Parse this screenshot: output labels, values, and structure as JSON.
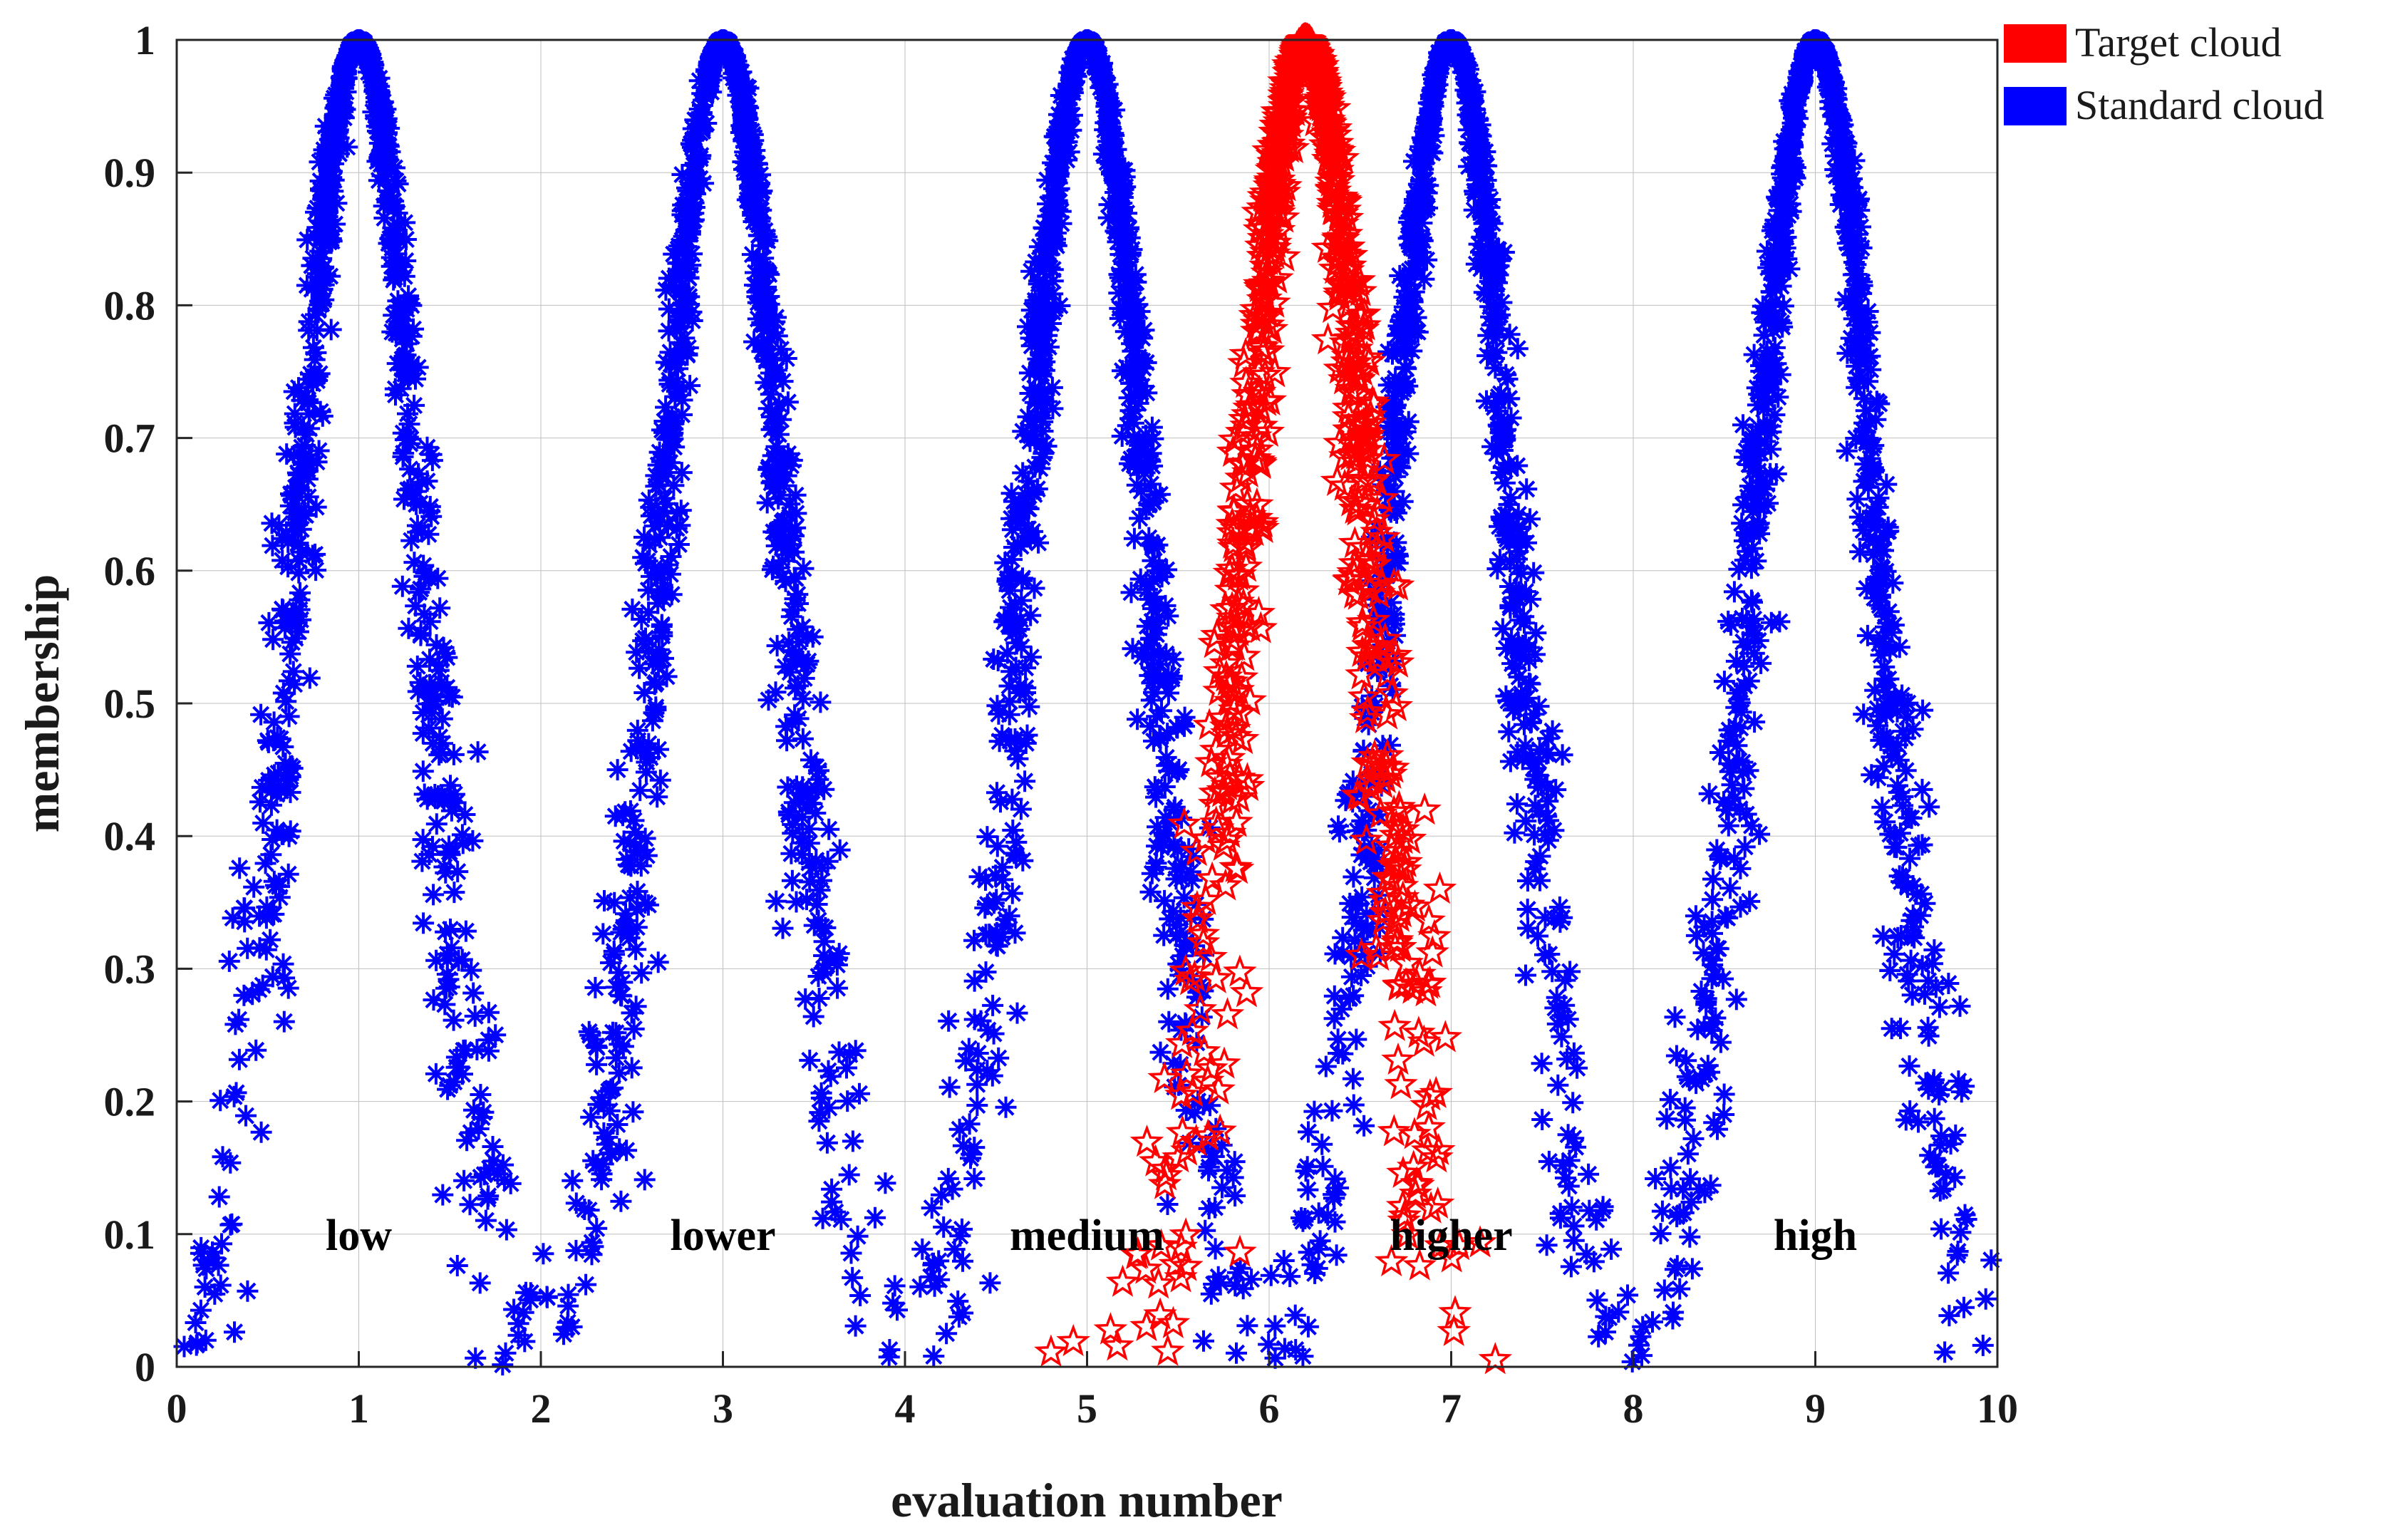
{
  "chart_data": {
    "type": "scatter",
    "title": "",
    "xlabel": "evaluation number",
    "ylabel": "membership",
    "xlim": [
      0,
      10
    ],
    "ylim": [
      0,
      1
    ],
    "xticks": [
      0,
      1,
      2,
      3,
      4,
      5,
      6,
      7,
      8,
      9,
      10
    ],
    "yticks": [
      0,
      0.1,
      0.2,
      0.3,
      0.4,
      0.5,
      0.6,
      0.7,
      0.8,
      0.9,
      1
    ],
    "xtick_labels": [
      "0",
      "1",
      "2",
      "3",
      "4",
      "5",
      "6",
      "7",
      "8",
      "9",
      "10"
    ],
    "ytick_labels": [
      "0",
      "0.1",
      "0.2",
      "0.3",
      "0.4",
      "0.5",
      "0.6",
      "0.7",
      "0.8",
      "0.9",
      "1"
    ],
    "legend_position": "outside-top-right",
    "series": [
      {
        "name": "Target cloud",
        "color": "#ff0000",
        "marker": "star",
        "clouds": [
          {
            "Ex": 6.2,
            "En": 0.35,
            "He": 0.06
          }
        ]
      },
      {
        "name": "Standard cloud",
        "color": "#0000ff",
        "marker": "asterisk",
        "clouds": [
          {
            "Ex": 1,
            "En": 0.35,
            "He": 0.05
          },
          {
            "Ex": 3,
            "En": 0.35,
            "He": 0.05
          },
          {
            "Ex": 5,
            "En": 0.35,
            "He": 0.05
          },
          {
            "Ex": 7,
            "En": 0.35,
            "He": 0.05
          },
          {
            "Ex": 9,
            "En": 0.35,
            "He": 0.05
          }
        ]
      }
    ],
    "annotations": [
      {
        "text": "low",
        "x": 1,
        "y": 0.1
      },
      {
        "text": "lower",
        "x": 3,
        "y": 0.1
      },
      {
        "text": "medium",
        "x": 5,
        "y": 0.1
      },
      {
        "text": "higher",
        "x": 7,
        "y": 0.1
      },
      {
        "text": "high",
        "x": 9,
        "y": 0.1
      }
    ]
  }
}
